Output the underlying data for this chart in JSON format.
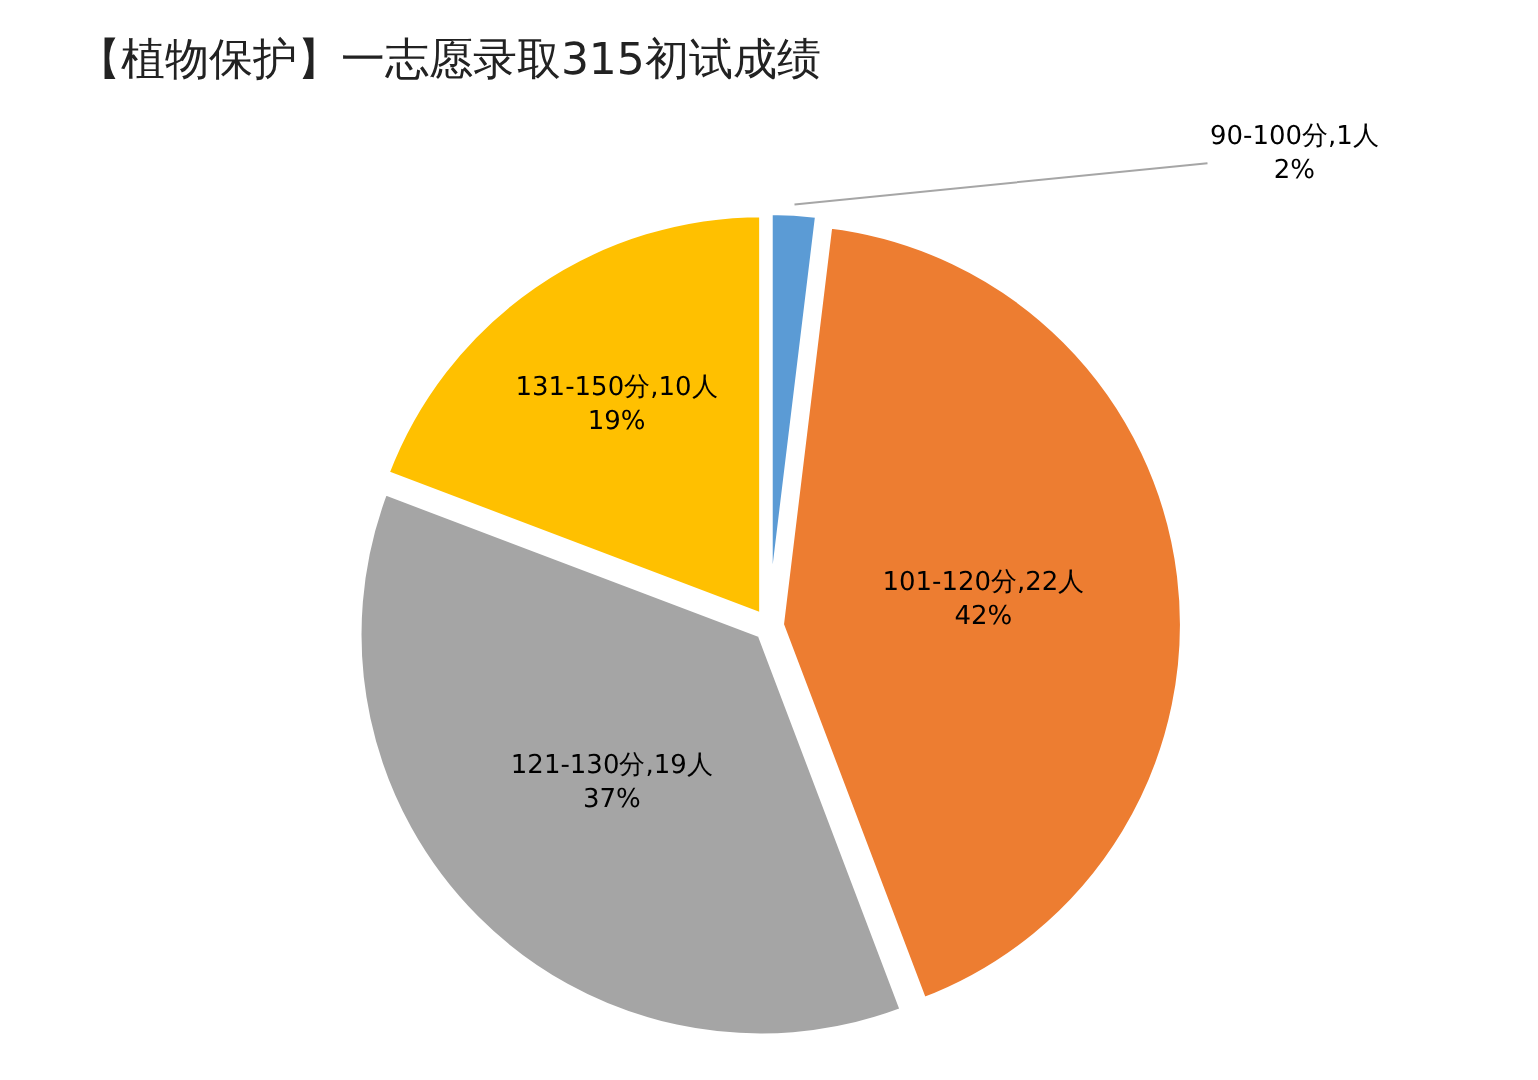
{
  "chart_data": {
    "type": "pie",
    "title": "【植物保护】一志愿录取315初试成绩",
    "categories": [
      "90-100分",
      "101-120分",
      "121-130分",
      "131-150分"
    ],
    "values": [
      1,
      22,
      19,
      10
    ],
    "colors": [
      "#5b9bd5",
      "#ed7d31",
      "#a5a5a5",
      "#ffc000"
    ],
    "value_labels": [
      ",1人\n2%",
      ",22人\n42%",
      ",19人\n37%",
      ",10人\n19%"
    ],
    "legend": false
  }
}
